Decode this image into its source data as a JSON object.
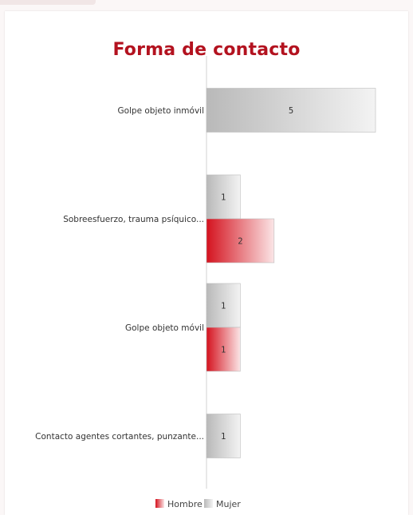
{
  "chart_data": {
    "type": "bar",
    "orientation": "horizontal",
    "title": "Forma de contacto",
    "categories": [
      "Golpe objeto inmóvil",
      "Sobreesfuerzo, trauma psíquico...",
      "Golpe objeto móvil",
      "Contacto agentes cortantes, punzante..."
    ],
    "series": [
      {
        "name": "Mujer",
        "values": [
          5,
          1,
          1,
          1
        ],
        "color": "#c8c8c8"
      },
      {
        "name": "Hombre",
        "values": [
          null,
          2,
          1,
          null
        ],
        "color": "#d9121f"
      }
    ],
    "legend": [
      "Hombre",
      "Mujer"
    ],
    "legend_position": "bottom",
    "grid": false
  }
}
